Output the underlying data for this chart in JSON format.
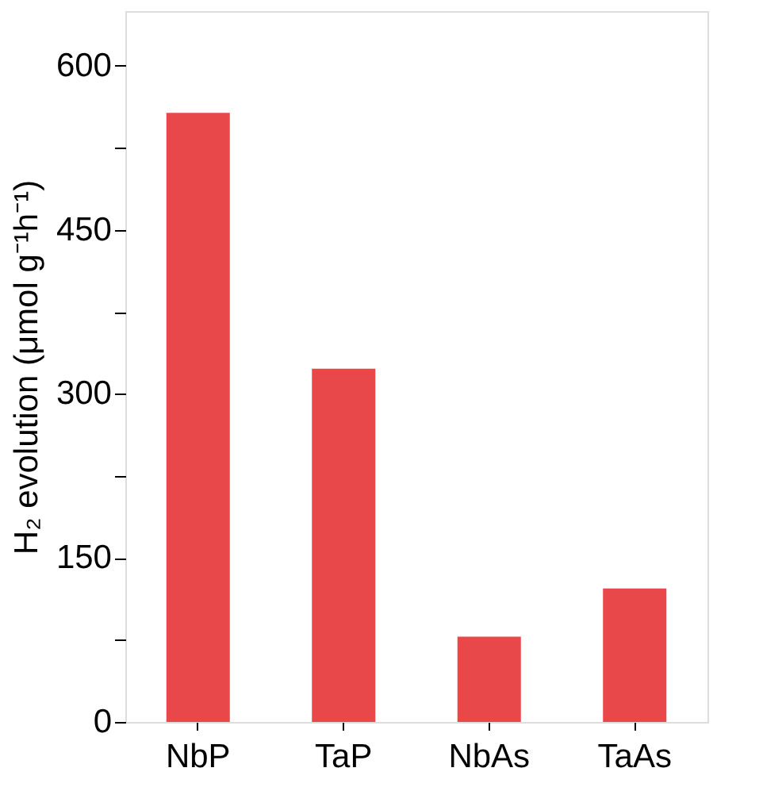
{
  "chart_data": {
    "type": "bar",
    "ylabel": "H₂ evolution (μmol g⁻¹h⁻¹)",
    "categories": [
      "NbP",
      "TaP",
      "NbAs",
      "TaAs"
    ],
    "values": [
      557,
      323,
      78,
      122
    ],
    "color": "#e8484a",
    "ylim": [
      0,
      650
    ],
    "yticks": [
      0,
      {
        "value": 75,
        "label": null
      },
      150,
      {
        "value": 225,
        "label": null
      },
      300,
      {
        "value": 375,
        "label": null
      },
      450,
      {
        "value": 525,
        "label": null
      },
      600
    ],
    "grid": false
  }
}
